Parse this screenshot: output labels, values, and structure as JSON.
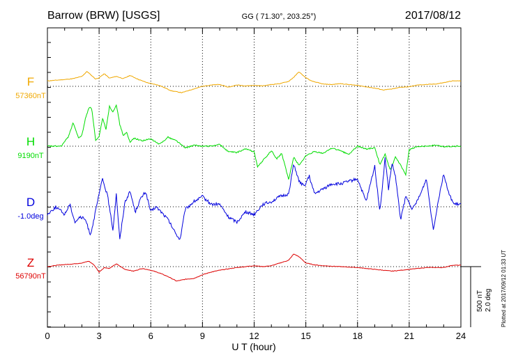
{
  "header": {
    "station": "Barrow (BRW)  [USGS]",
    "coords": "GG ( 71.30°, 203.25°)",
    "date": "2017/08/12"
  },
  "footer_note": "Plotted at 2017/09/12 01:33 UT",
  "scale_bar": {
    "nt_label": "500 nT",
    "deg_label": "2.0 deg"
  },
  "chart_data": {
    "type": "line",
    "xlabel": "U T (hour)",
    "xlim": [
      0,
      24
    ],
    "x_ticks": [
      "0",
      "3",
      "6",
      "9",
      "12",
      "15",
      "18",
      "21",
      "24"
    ],
    "grid": "vertical dotted at every 3 hours; dotted baseline per series",
    "series": [
      {
        "name": "F",
        "baseline_label": "57360nT",
        "color": "#f0a800",
        "x": [
          0,
          1,
          1.5,
          2,
          2.3,
          2.5,
          2.8,
          3,
          3.3,
          3.6,
          4,
          4.4,
          4.8,
          5.3,
          5.8,
          6.5,
          7.2,
          7.8,
          8.3,
          9,
          9.5,
          10,
          10.5,
          11,
          11.5,
          12,
          12.5,
          13,
          13.5,
          14,
          14.3,
          14.6,
          14.9,
          15.3,
          16,
          16.5,
          17,
          18,
          18.5,
          19,
          19.5,
          20,
          20.5,
          21,
          21.5,
          22,
          22.5,
          23,
          23.5,
          24
        ],
        "y": [
          60,
          75,
          85,
          110,
          165,
          130,
          80,
          95,
          140,
          90,
          110,
          85,
          120,
          75,
          40,
          10,
          -50,
          -70,
          -40,
          0,
          15,
          20,
          -10,
          15,
          5,
          10,
          5,
          20,
          30,
          55,
          100,
          160,
          110,
          60,
          25,
          20,
          30,
          10,
          -5,
          -20,
          -40,
          -30,
          -10,
          -5,
          15,
          20,
          25,
          40,
          60,
          60
        ]
      },
      {
        "name": "H",
        "baseline_label": "9190nT",
        "color": "#00dd00",
        "x": [
          0,
          0.8,
          1.2,
          1.5,
          1.8,
          2,
          2.2,
          2.4,
          2.5,
          2.6,
          2.8,
          3,
          3.2,
          3.4,
          3.6,
          3.8,
          4,
          4.2,
          4.4,
          4.6,
          4.8,
          5,
          5.5,
          6,
          6.5,
          7,
          7.5,
          8,
          8.5,
          9,
          9.5,
          10,
          10.5,
          11,
          11.5,
          12,
          12.2,
          12.5,
          13,
          13.3,
          13.6,
          14,
          14.3,
          14.6,
          15,
          15.5,
          16,
          16.5,
          17,
          17.5,
          18,
          18.5,
          19,
          19.3,
          19.6,
          19.9,
          20.2,
          20.5,
          20.8,
          21,
          21.5,
          22,
          22.5,
          23,
          23.5,
          24
        ],
        "y": [
          0,
          0,
          100,
          260,
          90,
          120,
          300,
          420,
          440,
          380,
          60,
          100,
          310,
          190,
          440,
          380,
          460,
          240,
          120,
          150,
          40,
          90,
          60,
          80,
          20,
          100,
          60,
          -20,
          10,
          0,
          0,
          20,
          -60,
          -70,
          -30,
          -60,
          -230,
          -160,
          -50,
          -140,
          -80,
          -370,
          -120,
          -210,
          -110,
          -60,
          -80,
          -20,
          -50,
          -90,
          0,
          -30,
          -20,
          -200,
          -90,
          -270,
          -120,
          -210,
          -320,
          -40,
          0,
          0,
          10,
          -5,
          0,
          0
        ]
      },
      {
        "name": "D",
        "baseline_label": "-1.0deg",
        "color": "#0000dd",
        "x": [
          0,
          0.5,
          1,
          1.3,
          1.6,
          1.9,
          2.2,
          2.5,
          2.7,
          3,
          3.2,
          3.5,
          3.8,
          4,
          4.2,
          4.5,
          4.8,
          5.1,
          5.4,
          5.7,
          6,
          6.3,
          6.6,
          7,
          7.4,
          7.7,
          8,
          8.5,
          9,
          9.5,
          10,
          10.5,
          11,
          11.5,
          12,
          12.5,
          13,
          13.5,
          14,
          14.3,
          14.6,
          14.9,
          15.2,
          15.5,
          16,
          16.5,
          17,
          17.5,
          18,
          18.5,
          19,
          19.3,
          19.6,
          19.8,
          20,
          20.2,
          20.5,
          20.8,
          21.2,
          21.6,
          22,
          22.4,
          22.7,
          23,
          23.3,
          23.6,
          24
        ],
        "y": [
          -0.15,
          0,
          -0.15,
          0.05,
          -0.3,
          -0.2,
          -0.25,
          -0.55,
          -0.25,
          0.25,
          0.55,
          0.2,
          -0.45,
          0.25,
          -0.65,
          0.1,
          0.3,
          -0.1,
          0.15,
          0.3,
          -0.1,
          0,
          -0.1,
          -0.25,
          -0.5,
          -0.65,
          -0.05,
          0.1,
          0.2,
          0.05,
          0.05,
          -0.2,
          -0.3,
          -0.1,
          -0.15,
          0.05,
          0.1,
          0.2,
          0.25,
          0.85,
          0.5,
          0.4,
          0.6,
          0.25,
          0.35,
          0.45,
          0.45,
          0.5,
          0.55,
          0.1,
          0.8,
          -0.1,
          0.95,
          0.35,
          0.85,
          0.6,
          -0.25,
          0.2,
          -0.05,
          0.2,
          0.55,
          -0.45,
          0.15,
          0.65,
          0.25,
          0.05,
          0.05
        ]
      },
      {
        "name": "Z",
        "baseline_label": "56790nT",
        "color": "#dd0000",
        "x": [
          0,
          0.8,
          1.5,
          2,
          2.4,
          2.7,
          3,
          3.3,
          3.6,
          4,
          4.5,
          5,
          5.5,
          6,
          6.5,
          7,
          7.5,
          8,
          8.5,
          9,
          9.5,
          10,
          11,
          12,
          12.5,
          13,
          13.5,
          14,
          14.3,
          14.6,
          15,
          15.5,
          16,
          17,
          18,
          19,
          20,
          21,
          22,
          23,
          23.5,
          24
        ],
        "y": [
          0,
          20,
          30,
          40,
          60,
          20,
          -60,
          -10,
          -20,
          30,
          -30,
          -50,
          -20,
          -40,
          -70,
          -110,
          -160,
          -140,
          -130,
          -90,
          -60,
          -40,
          -10,
          10,
          0,
          10,
          40,
          70,
          140,
          110,
          40,
          20,
          10,
          0,
          -10,
          -30,
          -50,
          -30,
          -10,
          -10,
          15,
          15
        ]
      }
    ]
  }
}
